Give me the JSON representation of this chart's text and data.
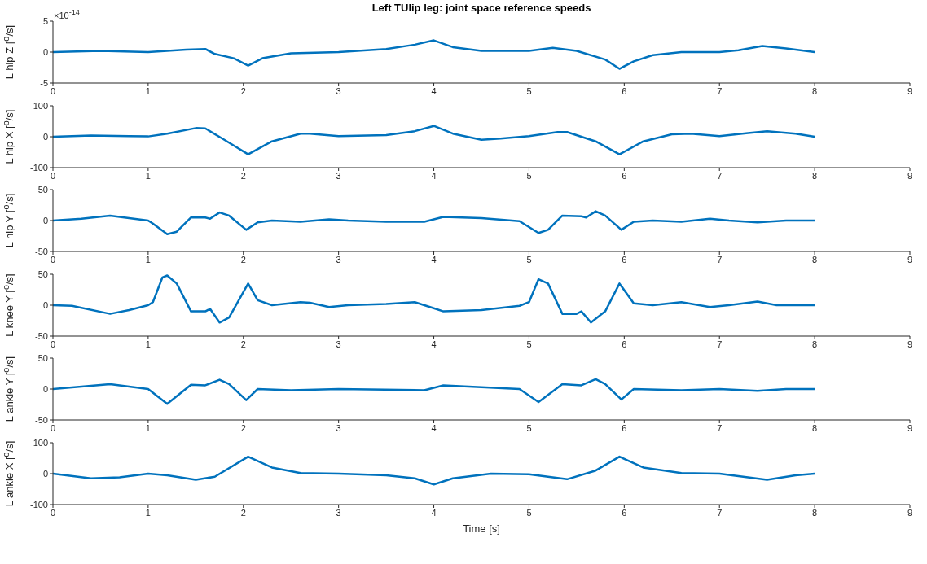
{
  "chart_data": [
    {
      "type": "line",
      "title": "Left TUlip leg: joint space reference speeds",
      "ylabel": "L hip Z [$^{o}$/s]",
      "annotations": [
        "×10$^{-14}$"
      ],
      "x": [
        0,
        0.5,
        1,
        1.4,
        1.6,
        1.7,
        1.9,
        2.05,
        2.2,
        2.5,
        3,
        3.5,
        3.8,
        4,
        4.2,
        4.5,
        5,
        5.25,
        5.5,
        5.8,
        5.95,
        6.1,
        6.3,
        6.6,
        7,
        7.2,
        7.45,
        7.7,
        8
      ],
      "series": [
        {
          "color": "#0072bd",
          "values": [
            0,
            0.2,
            0,
            0.4,
            0.5,
            -0.3,
            -1,
            -2.2,
            -1,
            -0.2,
            0,
            0.5,
            1.2,
            1.9,
            0.8,
            0.2,
            0.2,
            0.7,
            0.2,
            -1.2,
            -2.7,
            -1.5,
            -0.5,
            0,
            0,
            0.3,
            1,
            0.6,
            0
          ]
        }
      ],
      "xlim": [
        0,
        9
      ],
      "xticks": [
        0,
        1,
        2,
        3,
        4,
        5,
        6,
        7,
        8,
        9
      ],
      "ylim": [
        -5,
        5
      ],
      "yticks": [
        -5,
        0,
        5
      ],
      "grid": false
    },
    {
      "type": "line",
      "ylabel": "L hip X [$^{o}$/s]",
      "x": [
        0,
        0.4,
        0.8,
        1,
        1.2,
        1.5,
        1.6,
        1.8,
        2.05,
        2.3,
        2.6,
        2.7,
        3,
        3.5,
        3.8,
        4,
        4.2,
        4.5,
        4.7,
        5,
        5.3,
        5.4,
        5.7,
        5.95,
        6.2,
        6.5,
        6.7,
        7,
        7.3,
        7.5,
        7.8,
        8
      ],
      "series": [
        {
          "color": "#0072bd",
          "values": [
            0,
            4,
            2,
            1,
            10,
            28,
            27,
            -10,
            -57,
            -15,
            10,
            10,
            2,
            5,
            18,
            35,
            10,
            -10,
            -6,
            2,
            15,
            15,
            -15,
            -57,
            -15,
            8,
            10,
            2,
            12,
            18,
            10,
            0
          ]
        }
      ],
      "xlim": [
        0,
        9
      ],
      "xticks": [
        0,
        1,
        2,
        3,
        4,
        5,
        6,
        7,
        8,
        9
      ],
      "ylim": [
        -100,
        100
      ],
      "yticks": [
        -100,
        0,
        100
      ],
      "grid": false
    },
    {
      "type": "line",
      "ylabel": "L hip Y [$^{o}$/s]",
      "x": [
        0,
        0.3,
        0.6,
        0.8,
        1,
        1.05,
        1.2,
        1.3,
        1.45,
        1.6,
        1.65,
        1.75,
        1.85,
        2.03,
        2.15,
        2.3,
        2.6,
        2.9,
        3.1,
        3.5,
        3.9,
        4.1,
        4.5,
        4.9,
        5.1,
        5.2,
        5.35,
        5.55,
        5.6,
        5.7,
        5.8,
        5.97,
        6.1,
        6.3,
        6.6,
        6.9,
        7.1,
        7.4,
        7.7,
        8
      ],
      "series": [
        {
          "color": "#0072bd",
          "values": [
            0,
            3,
            8,
            4,
            0,
            -5,
            -22,
            -18,
            5,
            5,
            3,
            13,
            8,
            -15,
            -3,
            0,
            -2,
            2,
            0,
            -2,
            -2,
            6,
            4,
            -1,
            -20,
            -15,
            8,
            7,
            5,
            15,
            8,
            -15,
            -2,
            0,
            -2,
            3,
            0,
            -3,
            0,
            0
          ]
        }
      ],
      "xlim": [
        0,
        9
      ],
      "xticks": [
        0,
        1,
        2,
        3,
        4,
        5,
        6,
        7,
        8,
        9
      ],
      "ylim": [
        -50,
        50
      ],
      "yticks": [
        -50,
        0,
        50
      ],
      "grid": false
    },
    {
      "type": "line",
      "ylabel": "L knee Y [$^{o}$/s]",
      "x": [
        0,
        0.2,
        0.6,
        0.8,
        1,
        1.05,
        1.15,
        1.2,
        1.3,
        1.45,
        1.6,
        1.65,
        1.75,
        1.85,
        2.05,
        2.15,
        2.3,
        2.6,
        2.7,
        2.9,
        3.1,
        3.5,
        3.8,
        4,
        4.1,
        4.5,
        4.9,
        5,
        5.1,
        5.2,
        5.35,
        5.5,
        5.55,
        5.65,
        5.8,
        5.95,
        6.1,
        6.3,
        6.6,
        6.9,
        7.1,
        7.4,
        7.6,
        8
      ],
      "series": [
        {
          "color": "#0072bd",
          "values": [
            0,
            -1,
            -14,
            -8,
            0,
            5,
            45,
            48,
            35,
            -10,
            -10,
            -6,
            -28,
            -20,
            35,
            8,
            0,
            5,
            4,
            -3,
            0,
            2,
            5,
            -5,
            -10,
            -8,
            -1,
            5,
            42,
            35,
            -14,
            -14,
            -10,
            -28,
            -10,
            35,
            3,
            0,
            5,
            -3,
            0,
            6,
            0,
            0
          ]
        }
      ],
      "xlim": [
        0,
        9
      ],
      "xticks": [
        0,
        1,
        2,
        3,
        4,
        5,
        6,
        7,
        8,
        9
      ],
      "ylim": [
        -50,
        50
      ],
      "yticks": [
        -50,
        0,
        50
      ],
      "grid": false
    },
    {
      "type": "line",
      "ylabel": "L ankle Y [$^{o}$/s]",
      "x": [
        0,
        0.6,
        1,
        1.2,
        1.45,
        1.6,
        1.75,
        1.85,
        2.03,
        2.15,
        2.5,
        3,
        3.9,
        4.1,
        4.9,
        5.1,
        5.35,
        5.55,
        5.7,
        5.8,
        5.97,
        6.1,
        6.6,
        7,
        7.4,
        7.7,
        8
      ],
      "series": [
        {
          "color": "#0072bd",
          "values": [
            0,
            8,
            0,
            -24,
            7,
            6,
            15,
            8,
            -18,
            0,
            -2,
            0,
            -2,
            6,
            0,
            -21,
            8,
            6,
            16,
            8,
            -17,
            0,
            -2,
            0,
            -3,
            0,
            0
          ]
        }
      ],
      "xlim": [
        0,
        9
      ],
      "xticks": [
        0,
        1,
        2,
        3,
        4,
        5,
        6,
        7,
        8,
        9
      ],
      "ylim": [
        -50,
        50
      ],
      "yticks": [
        -50,
        0,
        50
      ],
      "grid": false
    },
    {
      "type": "line",
      "ylabel": "L ankle X [$^{o}$/s]",
      "xlabel": "Time [s]",
      "x": [
        0,
        0.4,
        0.7,
        1,
        1.2,
        1.5,
        1.7,
        2.05,
        2.3,
        2.6,
        3,
        3.5,
        3.8,
        4,
        4.2,
        4.6,
        5,
        5.4,
        5.7,
        5.95,
        6.2,
        6.6,
        7,
        7.5,
        7.8,
        8
      ],
      "series": [
        {
          "color": "#0072bd",
          "values": [
            0,
            -15,
            -12,
            0,
            -5,
            -20,
            -10,
            55,
            20,
            2,
            0,
            -5,
            -15,
            -35,
            -15,
            0,
            -2,
            -18,
            10,
            55,
            20,
            2,
            0,
            -20,
            -5,
            0
          ]
        }
      ],
      "xlim": [
        0,
        9
      ],
      "xticks": [
        0,
        1,
        2,
        3,
        4,
        5,
        6,
        7,
        8,
        9
      ],
      "ylim": [
        -100,
        100
      ],
      "yticks": [
        -100,
        0,
        100
      ],
      "grid": false
    }
  ]
}
